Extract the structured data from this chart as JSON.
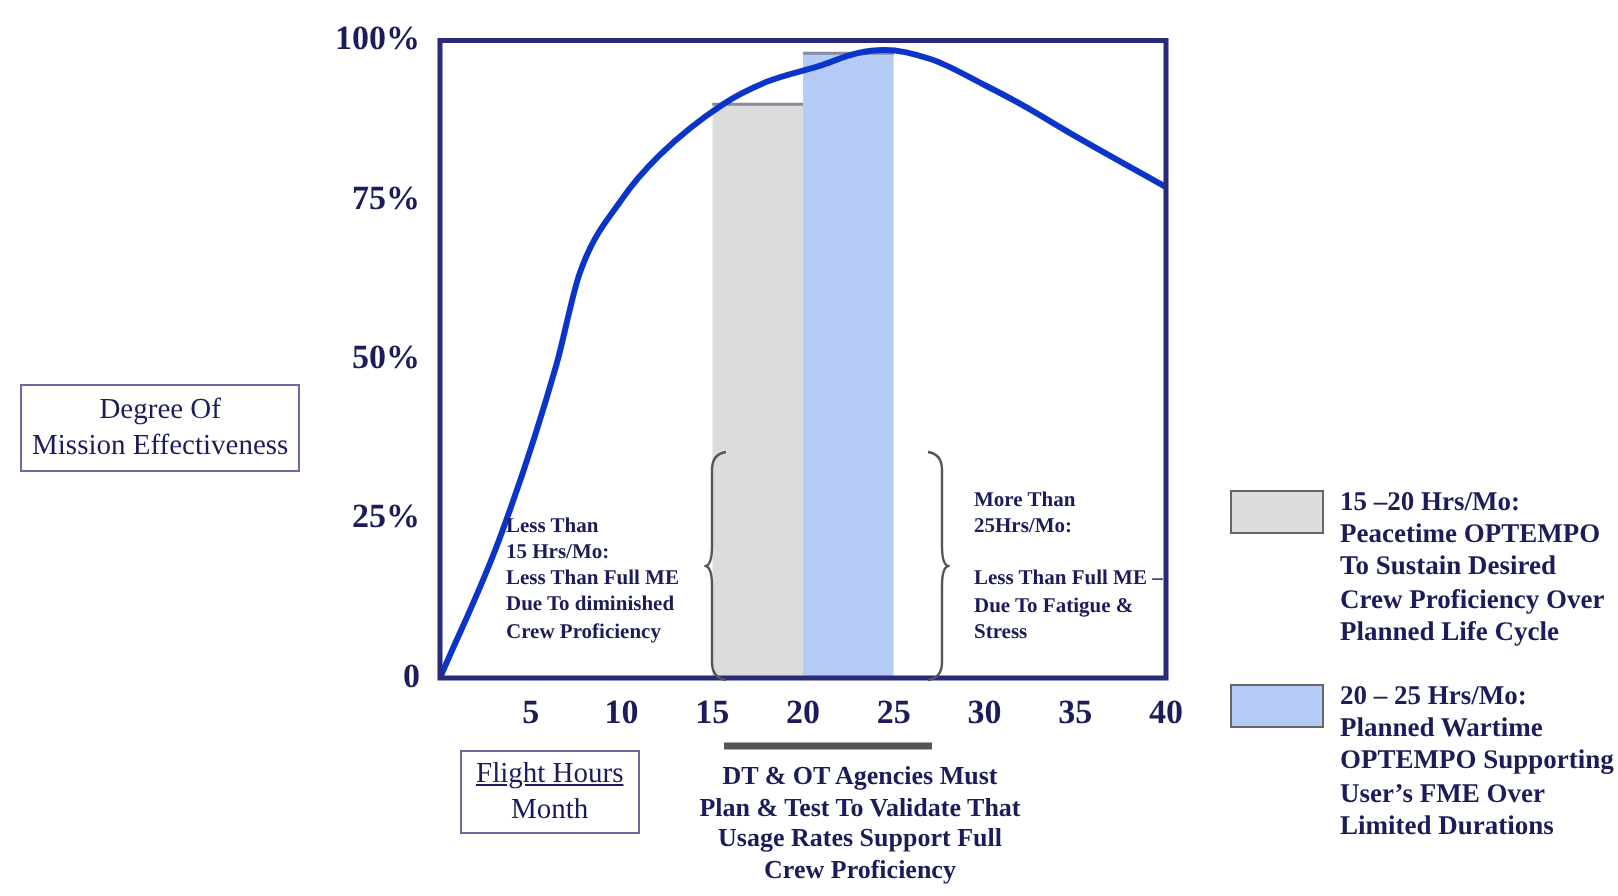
{
  "chart_data": {
    "type": "line",
    "ylabel": "Degree Of\nMission Effectiveness",
    "xlabel": "Flight Hours\nMonth",
    "xlim": [
      0,
      40
    ],
    "xticks": [
      5,
      10,
      15,
      20,
      25,
      30,
      35,
      40
    ],
    "ylim": [
      0,
      100
    ],
    "yticks": [
      0,
      {
        "value": 25,
        "label": "25%"
      },
      {
        "value": 50,
        "label": "50%"
      },
      {
        "value": 75,
        "label": "75%"
      },
      {
        "value": 100,
        "label": "100%"
      }
    ],
    "grid": false,
    "legend": "right",
    "marker": "none",
    "series": [
      {
        "type": "line",
        "color": "#0a35c8",
        "x": [
          0,
          3.3,
          6.4,
          7.7,
          10,
          12.1,
          15.6,
          18,
          20.9,
          23,
          24.5,
          27.1,
          30,
          32,
          35,
          40
        ],
        "values": [
          0,
          22,
          49,
          63.5,
          75,
          82,
          90,
          93.5,
          96,
          98,
          98.5,
          97,
          93,
          90,
          85,
          77
        ]
      },
      {
        "type": "area",
        "name": "15 –20 Hrs/Mo:\nPeacetime OPTEMPO\nTo Sustain Desired\nCrew Proficiency Over\nPlanned Life Cycle",
        "color": "#dcdcdc",
        "x": [
          15,
          20
        ],
        "values": [
          90,
          90
        ]
      },
      {
        "type": "area",
        "name": "20 – 25 Hrs/Mo:\nPlanned Wartime\nOPTEMPO Supporting\nUser’s FME Over\nLimited Durations",
        "color": "#b4cbf5",
        "x": [
          20,
          25
        ],
        "values": [
          98,
          98
        ]
      }
    ],
    "annotations": [
      "Less Than\n15 Hrs/Mo:\nLess Than Full ME\nDue To diminished\nCrew Proficiency",
      "More Than\n25Hrs/Mo:\n\nLess Than Full ME –\nDue To Fatigue &\nStress",
      "DT & OT Agencies Must\nPlan & Test To Validate That\nUsage Rates Support Full\nCrew Proficiency"
    ]
  }
}
